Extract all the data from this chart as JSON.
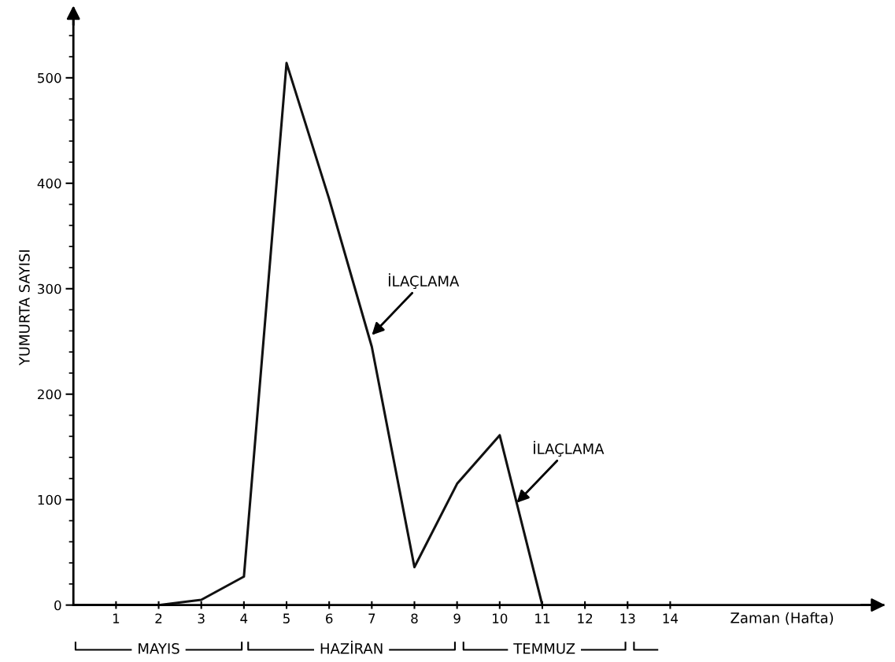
{
  "chart_data": {
    "type": "line",
    "ylabel": "YUMURTA SAYISI",
    "xlabel": "Zaman (Hafta)",
    "x": [
      0,
      1,
      2,
      3,
      4,
      5,
      6,
      7,
      8,
      9,
      10,
      11
    ],
    "series": [
      {
        "color": "#111111",
        "values": [
          0,
          0,
          0,
          5,
          27,
          514,
          385,
          245,
          36,
          115,
          161,
          0
        ]
      }
    ],
    "xlim": [
      0,
      19
    ],
    "ylim": [
      0,
      565
    ],
    "xticks": [
      1,
      2,
      3,
      4,
      5,
      6,
      7,
      8,
      9,
      10,
      11,
      12,
      13,
      14
    ],
    "yticks": [
      0,
      100,
      200,
      300,
      400,
      500
    ],
    "grid": false,
    "legend": false,
    "marker": "none",
    "line_style": "solid",
    "annotations": [
      {
        "text": "İLAÇLAMA",
        "x": 7,
        "y": 256
      },
      {
        "text": "İLAÇLAMA",
        "x": 10.4,
        "y": 97
      },
      "MAYIS",
      "HAZİRAN",
      "TEMMUZ"
    ]
  }
}
